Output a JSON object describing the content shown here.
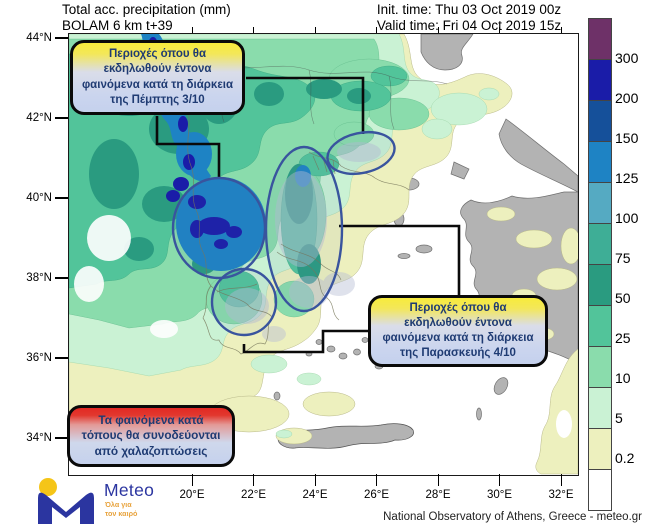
{
  "header": {
    "title": "Total acc. precipitation (mm)",
    "model": "BOLAM 6 km t+39",
    "init_time": "Init. time: Thu 03 Oct 2019 00z",
    "valid_time": "Valid time: Fri 04 Oct 2019 15z"
  },
  "map": {
    "lat_labels": [
      "44°N",
      "42°N",
      "40°N",
      "38°N",
      "36°N",
      "34°N"
    ],
    "lon_labels": [
      "20°E",
      "22°E",
      "24°E",
      "26°E",
      "28°E",
      "30°E",
      "32°E"
    ]
  },
  "legend": {
    "unit_values": [
      "300",
      "200",
      "150",
      "125",
      "100",
      "75",
      "50",
      "25",
      "10",
      "5",
      "0.2"
    ],
    "colors": [
      "#6E3168",
      "#1A1CA8",
      "#15509A",
      "#1E83C4",
      "#55AAC2",
      "#3EAE96",
      "#2A9B80",
      "#52C49A",
      "#8ADCAC",
      "#CAF2D4",
      "#EDF0BE",
      "#FFFFFF"
    ]
  },
  "annotations": {
    "thursday": "Περιοχές όπου θα εκδηλωθούν έντονα φαινόμενα κατά τη διάρκεια της Πέμπτης 3/10",
    "friday": "Περιοχές όπου θα εκδηλωθούν έντονα φαινόμενα κατά τη διάρκεια της Παρασκευής 4/10",
    "hail": "Τα φαινόμενα κατά τόπους θα συνοδεύονται από χαλαζοπτώσεις"
  },
  "logo": {
    "brand": "Meteo",
    "tagline_line1": "Όλα για",
    "tagline_line2": "τον καιρό"
  },
  "footer": {
    "attribution": "National Observatory of Athens, Greece - meteo.gr"
  }
}
